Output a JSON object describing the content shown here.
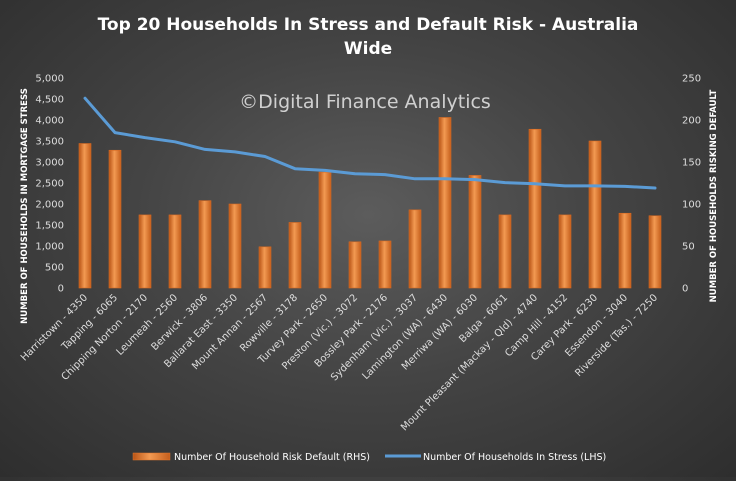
{
  "chart_data": {
    "type": "bar",
    "title_line1": "Top 20 Households In Stress and Default Risk -  Australia",
    "title_line2": "Wide",
    "watermark": "©Digital Finance Analytics",
    "categories": [
      "Harristown - 4350",
      "Tapping - 6065",
      "Chipping Norton - 2170",
      "Leumeah - 2560",
      "Berwick - 3806",
      "Ballarat East - 3350",
      "Mount Annan - 2567",
      "Rowville - 3178",
      "Turvey Park - 2650",
      "Preston (Vic.) - 3072",
      "Bossley Park - 2176",
      "Sydenham (Vic.) - 3037",
      "Lamington (WA) - 6430",
      "Merriwa (WA) - 6030",
      "Balga - 6061",
      "Mount Pleasant (Mackay - Qld) - 4740",
      "Camp Hill - 4152",
      "Carey Park - 6230",
      "Essendon - 3040",
      "Riverside (Tas.) - 7250"
    ],
    "series": [
      {
        "name": "Number Of Household Risk Default (RHS)",
        "kind": "bar",
        "axis": "right",
        "values": [
          172,
          164,
          87,
          87,
          104,
          100,
          49,
          78,
          138,
          55,
          56,
          93,
          203,
          134,
          87,
          189,
          87,
          175,
          89,
          86
        ]
      },
      {
        "name": "Number Of Households In Stress (LHS)",
        "kind": "line",
        "axis": "left",
        "values": [
          4520,
          3700,
          3580,
          3480,
          3300,
          3240,
          3130,
          2840,
          2800,
          2720,
          2700,
          2600,
          2600,
          2580,
          2510,
          2480,
          2430,
          2430,
          2420,
          2380
        ]
      }
    ],
    "ylabel": "NUMBER OF HOUSEHOLDS IN MORTGAGE STRESS",
    "y2label": "NUMBER OF HOUSEHOLDS RISKING DEFAULT",
    "ylim": [
      0,
      5000
    ],
    "y2lim": [
      0,
      250
    ],
    "yticks": [
      "0",
      "500",
      "1,000",
      "1,500",
      "2,000",
      "2,500",
      "3,000",
      "3,500",
      "4,000",
      "4,500",
      "5,000"
    ],
    "y2ticks": [
      "0",
      "50",
      "100",
      "150",
      "200",
      "250"
    ],
    "grid": false,
    "legend_position": "bottom"
  },
  "colors": {
    "bar": "#e0742a",
    "bar_light": "#f4a25e",
    "line": "#5b9bd5",
    "text": "#ffffff",
    "tick_text": "#dddddd",
    "watermark": "#d0d0d0"
  }
}
